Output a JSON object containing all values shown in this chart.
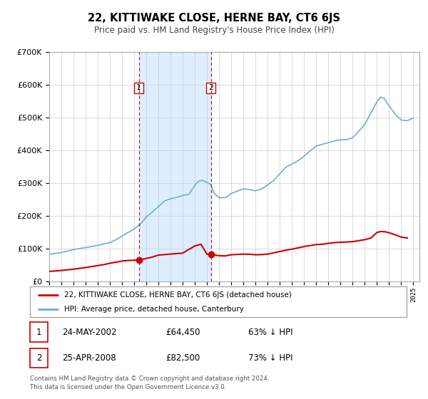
{
  "title": "22, KITTIWAKE CLOSE, HERNE BAY, CT6 6JS",
  "subtitle": "Price paid vs. HM Land Registry's House Price Index (HPI)",
  "legend_line1": "22, KITTIWAKE CLOSE, HERNE BAY, CT6 6JS (detached house)",
  "legend_line2": "HPI: Average price, detached house, Canterbury",
  "transaction1_date": "24-MAY-2002",
  "transaction1_price": "£64,450",
  "transaction1_hpi": "63% ↓ HPI",
  "transaction2_date": "25-APR-2008",
  "transaction2_price": "£82,500",
  "transaction2_hpi": "73% ↓ HPI",
  "footer": "Contains HM Land Registry data © Crown copyright and database right 2024.\nThis data is licensed under the Open Government Licence v3.0.",
  "hpi_color": "#6baed6",
  "price_color": "#cc0000",
  "marker_color": "#cc0000",
  "shaded_region_color": "#ddeeff",
  "vline_color": "#cc0000",
  "ylim": [
    0,
    700000
  ],
  "yticks": [
    0,
    100000,
    200000,
    300000,
    400000,
    500000,
    600000,
    700000
  ],
  "xlim_start": 1995.0,
  "xlim_end": 2025.5,
  "transaction1_x": 2002.39,
  "transaction1_y": 64450,
  "transaction2_x": 2008.32,
  "transaction2_y": 82500,
  "background_color": "#ffffff",
  "grid_color": "#cccccc",
  "hpi_years": [
    1995.0,
    1995.5,
    1996.0,
    1996.5,
    1997.0,
    1997.5,
    1998.0,
    1998.5,
    1999.0,
    1999.5,
    2000.0,
    2000.5,
    2001.0,
    2001.5,
    2002.0,
    2002.5,
    2003.0,
    2003.5,
    2004.0,
    2004.5,
    2005.0,
    2005.5,
    2006.0,
    2006.5,
    2007.0,
    2007.3,
    2007.6,
    2008.0,
    2008.3,
    2008.6,
    2009.0,
    2009.5,
    2010.0,
    2010.5,
    2011.0,
    2011.5,
    2012.0,
    2012.5,
    2013.0,
    2013.5,
    2014.0,
    2014.5,
    2015.0,
    2015.5,
    2016.0,
    2016.5,
    2017.0,
    2017.5,
    2018.0,
    2018.5,
    2019.0,
    2019.5,
    2020.0,
    2020.5,
    2021.0,
    2021.3,
    2021.6,
    2022.0,
    2022.3,
    2022.6,
    2023.0,
    2023.5,
    2024.0,
    2024.5,
    2025.0
  ],
  "hpi_values": [
    82000,
    85000,
    88000,
    92000,
    97000,
    100000,
    103000,
    106000,
    110000,
    114000,
    118000,
    127000,
    138000,
    149000,
    160000,
    174000,
    196000,
    212000,
    228000,
    245000,
    252000,
    256000,
    262000,
    265000,
    293000,
    305000,
    308000,
    302000,
    295000,
    268000,
    255000,
    255000,
    268000,
    275000,
    282000,
    280000,
    276000,
    282000,
    294000,
    308000,
    328000,
    348000,
    358000,
    368000,
    382000,
    398000,
    413000,
    418000,
    423000,
    428000,
    432000,
    432000,
    438000,
    458000,
    478000,
    500000,
    520000,
    548000,
    562000,
    558000,
    535000,
    510000,
    492000,
    490000,
    498000
  ],
  "red_years": [
    1995.0,
    1995.5,
    1996.0,
    1996.5,
    1997.0,
    1997.5,
    1998.0,
    1998.5,
    1999.0,
    1999.5,
    2000.0,
    2000.5,
    2001.0,
    2001.5,
    2002.0,
    2002.39,
    2002.8,
    2003.5,
    2004.0,
    2005.0,
    2006.0,
    2007.0,
    2007.5,
    2008.0,
    2008.32,
    2008.7,
    2009.0,
    2009.5,
    2010.0,
    2010.5,
    2011.0,
    2011.5,
    2012.0,
    2012.5,
    2013.0,
    2013.5,
    2014.0,
    2014.5,
    2015.0,
    2015.5,
    2016.0,
    2016.5,
    2017.0,
    2017.5,
    2018.0,
    2018.5,
    2019.0,
    2019.5,
    2020.0,
    2020.5,
    2021.0,
    2021.5,
    2022.0,
    2022.3,
    2022.7,
    2023.0,
    2023.5,
    2024.0,
    2024.5
  ],
  "red_values": [
    30000,
    31500,
    33000,
    35000,
    37000,
    39500,
    42000,
    45000,
    48000,
    51000,
    55000,
    58500,
    62000,
    63500,
    64450,
    64450,
    68000,
    74000,
    80000,
    83000,
    86000,
    108000,
    113000,
    82500,
    82500,
    80000,
    78000,
    77500,
    81000,
    82000,
    83000,
    82500,
    81000,
    81500,
    83000,
    87000,
    91000,
    95000,
    98000,
    102000,
    106000,
    109000,
    112000,
    113000,
    116000,
    118000,
    119000,
    120000,
    121000,
    124000,
    127000,
    132000,
    149000,
    152000,
    151000,
    148000,
    142000,
    135000,
    132000
  ]
}
